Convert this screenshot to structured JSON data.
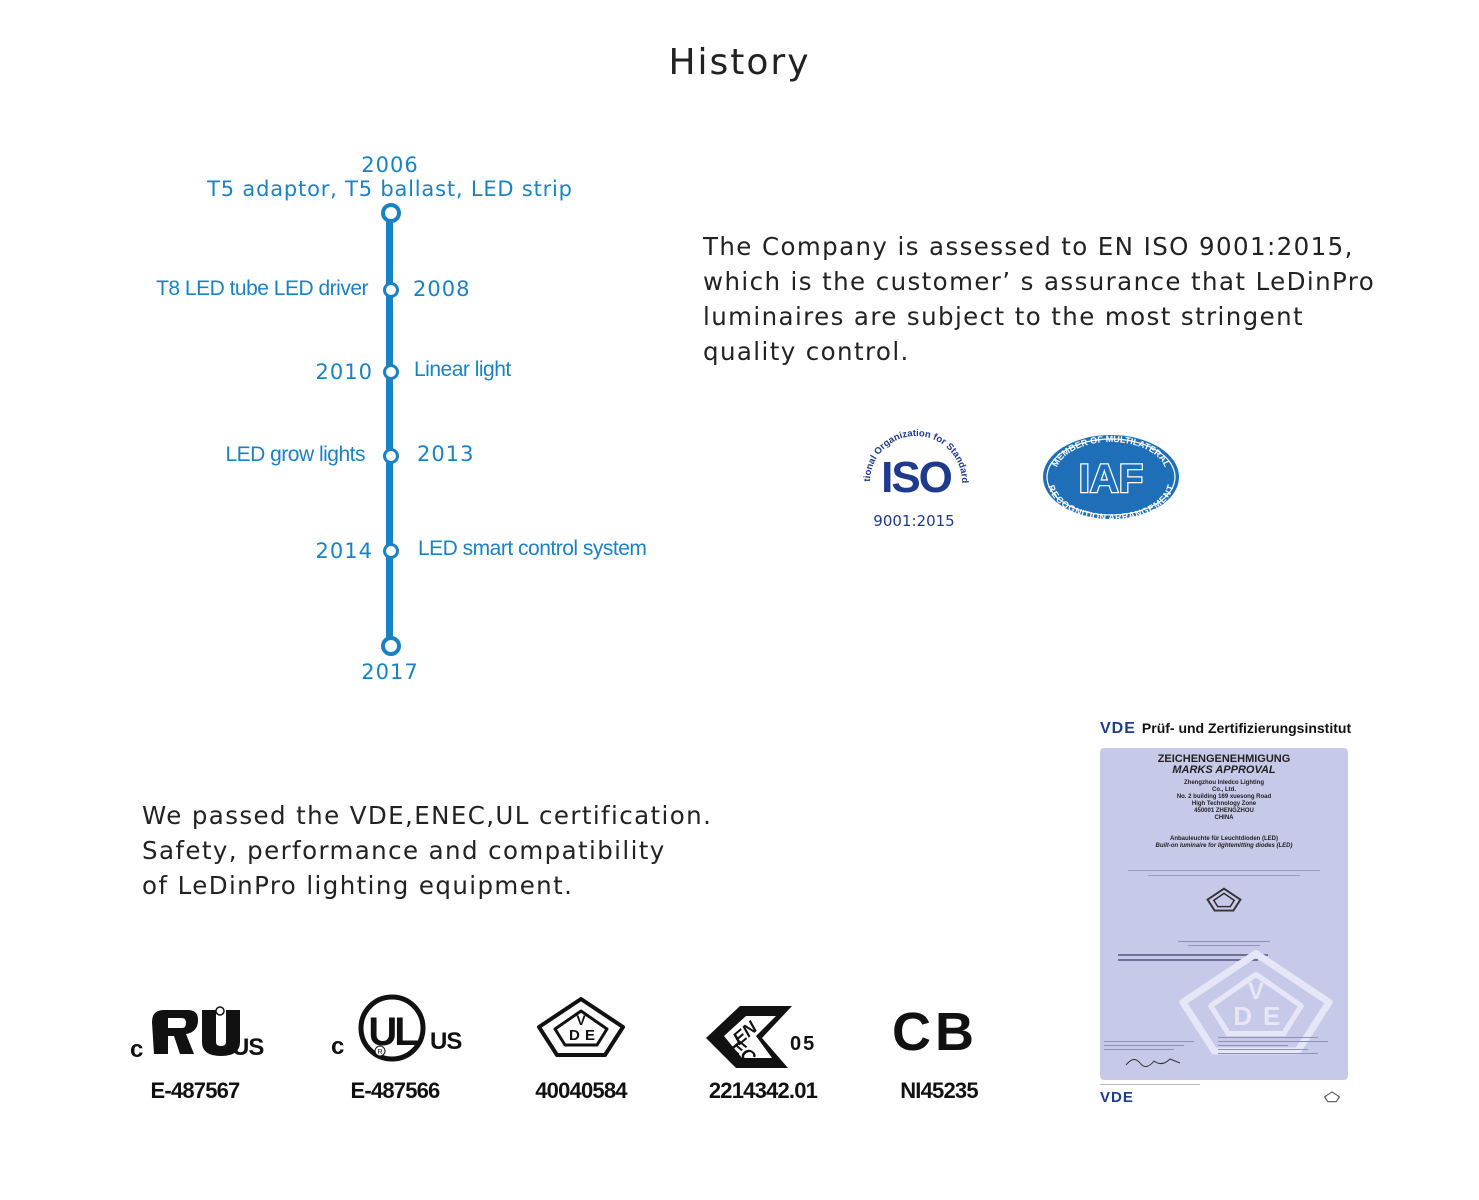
{
  "title": "History",
  "timeline": {
    "top_year": "2006",
    "top_label": "T5 adaptor, T5 ballast, LED strip",
    "entries": [
      {
        "label": "T8 LED tube  LED driver",
        "year": "2008"
      },
      {
        "year": "2010",
        "label": "Linear light"
      },
      {
        "label": "LED grow  lights",
        "year": "2013"
      },
      {
        "year": "2014",
        "label": "LED smart control system"
      }
    ],
    "bottom_year": "2017"
  },
  "iso_paragraph": [
    "The Company is assessed to  EN ISO 9001:2015,",
    "which is the customer’  s assurance that LeDinPro",
    "luminaires are subject to the most stringent",
    "quality control."
  ],
  "iso_logo": {
    "ring_text": "International Organization for Standardization",
    "mark": "ISO",
    "standard": "9001:2015"
  },
  "iaf_logo": {
    "top_text": "MEMBER OF MULTILATERAL",
    "mark": "IAF",
    "bottom_text": "RECOGNITION ARRANGEMENT"
  },
  "cert_paragraph": [
    "We passed the VDE,ENEC,UL certification.",
    "Safety, performance and compatibility",
    "of LeDinPro lighting equipment."
  ],
  "certs": [
    {
      "name": "cru-mark",
      "number": "E-487567"
    },
    {
      "name": "cul-us-mark",
      "number": "E-487566"
    },
    {
      "name": "vde-mark",
      "number": "40040584"
    },
    {
      "name": "enec-mark",
      "number": "2214342.01",
      "suffix": "05"
    },
    {
      "name": "cb-mark",
      "number": "NI45235",
      "mark": "CB"
    }
  ],
  "vde_certificate": {
    "header_brand": "VDE",
    "header_title": "Prüf- und Zertifizierungsinstitut",
    "title_de": "ZEICHENGENEHMIGUNG",
    "title_en": "MARKS APPROVAL",
    "address": [
      "Zhengzhou Inledco Lighting",
      "Co., Ltd.",
      "No. 2 building 169 xuesong Road",
      "High Technology Zone",
      "450001 ZHENGZHOU",
      "CHINA"
    ],
    "product_de": "Anbauleuchte für Leuchtdioden (LED)",
    "product_en": "Built-on luminaire for lightemitting diodes (LED)",
    "footer_brand": "VDE"
  }
}
